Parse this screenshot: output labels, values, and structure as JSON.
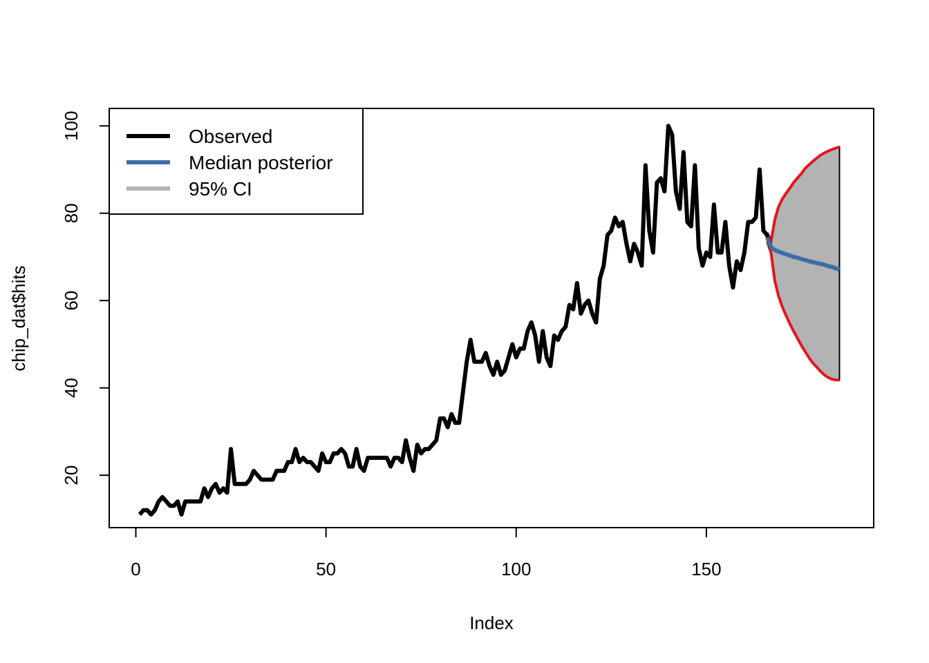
{
  "chart_data": {
    "type": "line",
    "title": "",
    "xlabel": "Index",
    "ylabel": "chip_dat$hits",
    "xlim": [
      -7,
      194
    ],
    "ylim": [
      8,
      104
    ],
    "xticks": [
      0,
      50,
      100,
      150
    ],
    "yticks": [
      20,
      40,
      60,
      80,
      100
    ],
    "legend_position": "top-left",
    "grid": false,
    "colors": {
      "observed": "#000000",
      "median": "#3b6ea8",
      "ci_fill": "#b3b3b3",
      "ci_border": "#e8141c"
    },
    "legend": [
      {
        "label": "Observed",
        "color": "#000000"
      },
      {
        "label": "Median posterior",
        "color": "#3b6ea8"
      },
      {
        "label": "95% CI",
        "color": "#b3b3b3"
      }
    ],
    "series": [
      {
        "name": "Observed",
        "x_start": 1,
        "values": [
          11,
          12,
          12,
          11,
          12,
          14,
          15,
          14,
          13,
          13,
          14,
          11,
          14,
          14,
          14,
          14,
          14,
          17,
          15,
          17,
          18,
          16,
          17,
          16,
          26,
          18,
          18,
          18,
          18,
          19,
          21,
          20,
          19,
          19,
          19,
          19,
          21,
          21,
          21,
          23,
          23,
          26,
          23,
          24,
          23,
          23,
          22,
          21,
          25,
          23,
          23,
          25,
          25,
          26,
          25,
          22,
          22,
          26,
          22,
          21,
          24,
          24,
          24,
          24,
          24,
          24,
          22,
          24,
          24,
          23,
          28,
          24,
          21,
          27,
          25,
          26,
          26,
          27,
          28,
          33,
          33,
          31,
          34,
          32,
          32,
          39,
          46,
          51,
          46,
          46,
          46,
          48,
          45,
          43,
          46,
          43,
          44,
          47,
          50,
          47,
          49,
          49,
          53,
          55,
          52,
          46,
          53,
          47,
          45,
          52,
          51,
          53,
          54,
          59,
          58,
          64,
          57,
          59,
          60,
          57,
          55,
          65,
          68,
          75,
          76,
          79,
          77,
          78,
          73,
          69,
          73,
          71,
          68,
          91,
          76,
          71,
          87,
          88,
          85,
          100,
          98,
          85,
          81,
          94,
          78,
          77,
          91,
          72,
          68,
          71,
          70,
          82,
          71,
          71,
          78,
          68,
          63,
          69,
          67,
          71,
          78,
          78,
          79,
          90,
          76,
          75,
          72
        ]
      },
      {
        "name": "Median posterior",
        "x": [
          166,
          167,
          168,
          169,
          170,
          171,
          172,
          173,
          174,
          175,
          176,
          177,
          178,
          179,
          180,
          181,
          182,
          183,
          184,
          185
        ],
        "values": [
          74.5,
          72.2,
          71.6,
          71.2,
          70.9,
          70.6,
          70.3,
          70.0,
          69.8,
          69.5,
          69.3,
          69.0,
          68.8,
          68.6,
          68.4,
          68.2,
          67.9,
          67.7,
          67.4,
          67.1
        ]
      },
      {
        "name": "Upper",
        "x": [
          166,
          167,
          168,
          169,
          170,
          171,
          172,
          173,
          174,
          175,
          176,
          177,
          178,
          179,
          180,
          181,
          182,
          183,
          184,
          185
        ],
        "values": [
          75.5,
          73.5,
          78.5,
          81.5,
          83.3,
          84.6,
          85.8,
          87.1,
          88.1,
          89.1,
          90.3,
          91.1,
          91.9,
          92.6,
          93.3,
          93.8,
          94.2,
          94.6,
          94.9,
          95.2
        ]
      },
      {
        "name": "Lower",
        "x": [
          166,
          167,
          168,
          169,
          170,
          171,
          172,
          173,
          174,
          175,
          176,
          177,
          178,
          179,
          180,
          181,
          182,
          183,
          184,
          185
        ],
        "values": [
          73.5,
          71.0,
          64.5,
          61.0,
          58.5,
          56.5,
          54.6,
          52.9,
          51.3,
          49.7,
          48.3,
          46.9,
          45.7,
          44.8,
          43.8,
          43.0,
          42.4,
          42.0,
          41.8,
          41.8
        ]
      }
    ]
  }
}
